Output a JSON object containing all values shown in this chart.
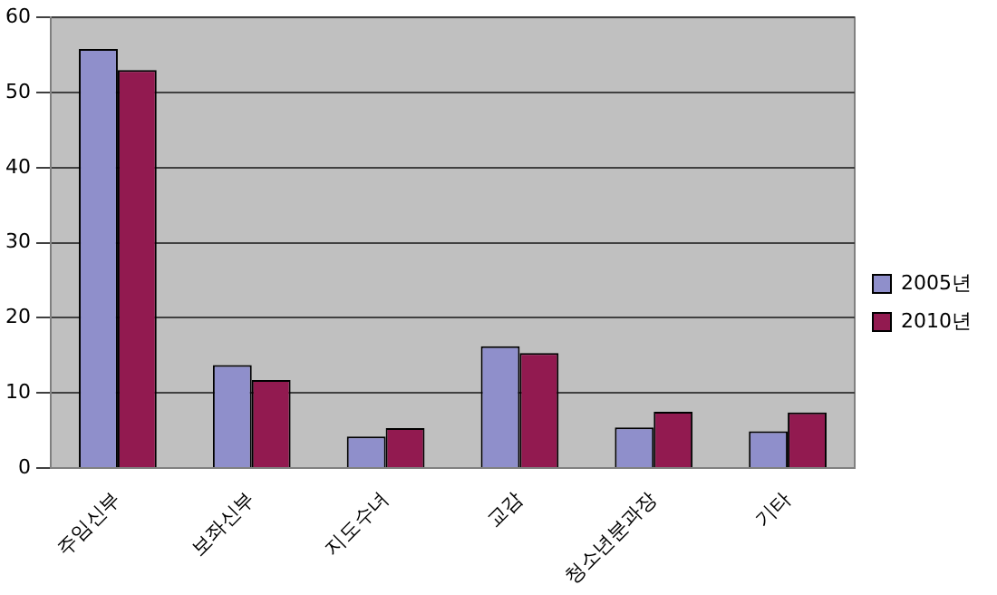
{
  "chart_data": {
    "type": "bar",
    "categories": [
      "주임신부",
      "보좌신부",
      "지도수녀",
      "교감",
      "청소년분과장",
      "기타"
    ],
    "series": [
      {
        "name": "2005년",
        "color": "#8f8fcb",
        "values": [
          55.8,
          13.7,
          4.2,
          16.2,
          5.4,
          4.9
        ]
      },
      {
        "name": "2010년",
        "color": "#921a50",
        "values": [
          53,
          11.7,
          5.3,
          15.3,
          7.5,
          7.4
        ]
      }
    ],
    "ylim": [
      0,
      60
    ],
    "yticks": [
      0,
      10,
      20,
      30,
      40,
      50,
      60
    ],
    "grid": "y",
    "legend": "right"
  }
}
